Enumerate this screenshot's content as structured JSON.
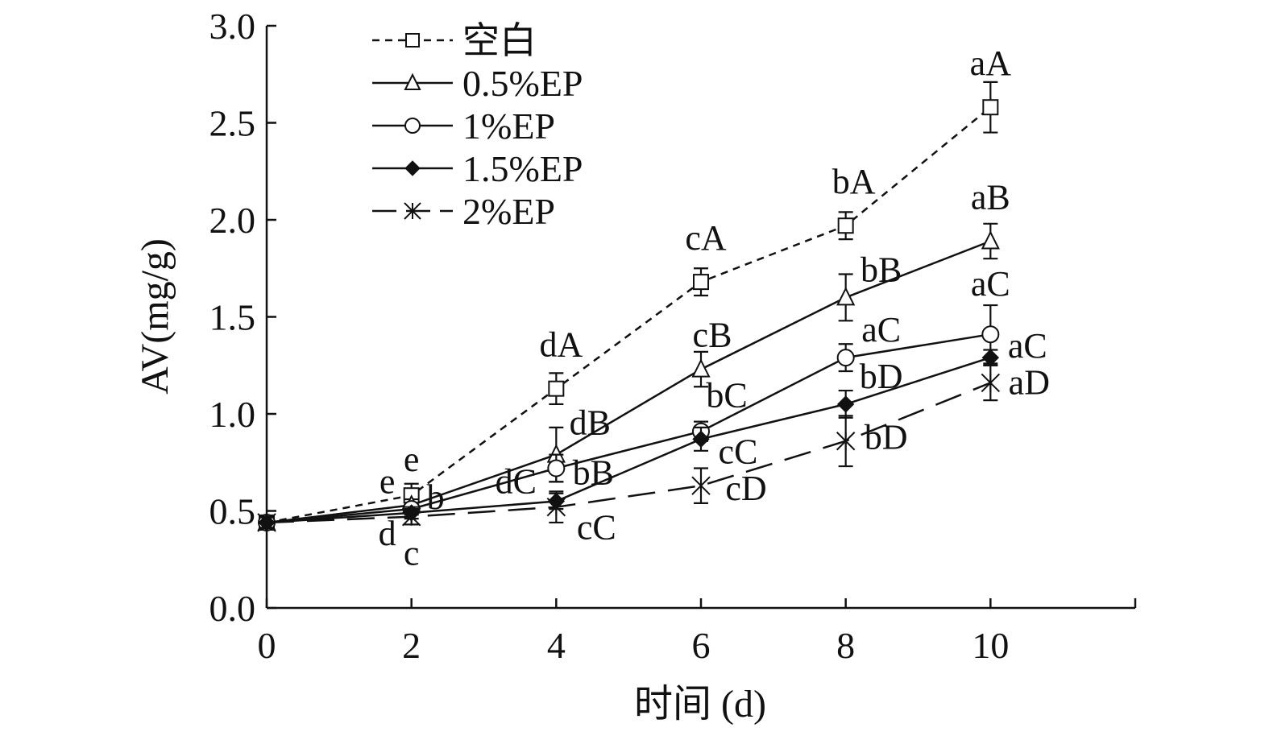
{
  "chart_data": {
    "type": "line",
    "xlabel": "时间 (d)",
    "ylabel": "AV(mg/g)",
    "xlim": [
      0,
      12
    ],
    "ylim": [
      0,
      3
    ],
    "x_ticks": [
      0,
      2,
      4,
      6,
      8,
      10
    ],
    "x_tick_labels": [
      "0",
      "2",
      "4",
      "6",
      "8",
      "10"
    ],
    "y_ticks": [
      0,
      0.5,
      1,
      1.5,
      2,
      2.5,
      3
    ],
    "y_tick_labels": [
      "0.0",
      "0.5",
      "1.0",
      "1.5",
      "2.0",
      "2.5",
      "3.0"
    ],
    "grid": false,
    "legend_position": "top-left",
    "x": [
      0,
      2,
      4,
      6,
      8,
      10
    ],
    "series": [
      {
        "name": "空白",
        "values": [
          0.44,
          0.58,
          1.13,
          1.68,
          1.97,
          2.58
        ],
        "errors": [
          0.03,
          0.06,
          0.08,
          0.07,
          0.07,
          0.13
        ],
        "line": "dashed",
        "marker": "square-open"
      },
      {
        "name": "0.5%EP",
        "values": [
          0.44,
          0.53,
          0.79,
          1.23,
          1.6,
          1.89
        ],
        "errors": [
          0.03,
          0.03,
          0.14,
          0.09,
          0.12,
          0.09
        ],
        "line": "solid",
        "marker": "triangle-open"
      },
      {
        "name": "1%EP",
        "values": [
          0.44,
          0.51,
          0.72,
          0.91,
          1.29,
          1.41
        ],
        "errors": [
          0.03,
          0.03,
          0.07,
          0.05,
          0.07,
          0.15
        ],
        "line": "solid",
        "marker": "circle-open"
      },
      {
        "name": "1.5%EP",
        "values": [
          0.44,
          0.49,
          0.55,
          0.87,
          1.05,
          1.29
        ],
        "errors": [
          0.03,
          0.03,
          0.04,
          0.06,
          0.07,
          0.04
        ],
        "line": "solid",
        "marker": "diamond-filled"
      },
      {
        "name": "2%EP",
        "values": [
          0.44,
          0.47,
          0.52,
          0.63,
          0.86,
          1.16
        ],
        "errors": [
          0.03,
          0.04,
          0.08,
          0.09,
          0.13,
          0.09
        ],
        "line": "long-dash",
        "marker": "asterisk"
      }
    ],
    "annotations": [
      {
        "text": "aA",
        "x": 10,
        "y": 2.58,
        "series": "空白"
      },
      {
        "text": "bA",
        "x": 8,
        "y": 1.97,
        "series": "空白"
      },
      {
        "text": "cA",
        "x": 6,
        "y": 1.68,
        "series": "空白"
      },
      {
        "text": "dA",
        "x": 4,
        "y": 1.13,
        "series": "空白"
      },
      {
        "text": "e",
        "x": 2,
        "y": 0.58,
        "series": "空白"
      },
      {
        "text": "e",
        "x": 2,
        "y": 0.53,
        "series": "0.5%EP"
      },
      {
        "text": "b",
        "x": 2,
        "y": 0.51,
        "series": "1%EP"
      },
      {
        "text": "d",
        "x": 2,
        "y": 0.49,
        "series": "1.5%EP"
      },
      {
        "text": "c",
        "x": 2,
        "y": 0.47,
        "series": "2%EP"
      },
      {
        "text": "aB",
        "x": 10,
        "y": 1.89,
        "series": "0.5%EP"
      },
      {
        "text": "bB",
        "x": 8,
        "y": 1.6,
        "series": "0.5%EP"
      },
      {
        "text": "cB",
        "x": 6,
        "y": 1.23,
        "series": "0.5%EP"
      },
      {
        "text": "dB",
        "x": 4,
        "y": 0.79,
        "series": "0.5%EP"
      },
      {
        "text": "aC",
        "x": 10,
        "y": 1.41,
        "series": "1%EP"
      },
      {
        "text": "aC",
        "x": 8,
        "y": 1.29,
        "series": "1%EP"
      },
      {
        "text": "bC",
        "x": 6,
        "y": 0.91,
        "series": "1%EP"
      },
      {
        "text": "bB",
        "x": 4,
        "y": 0.72,
        "series": "1%EP"
      },
      {
        "text": "aC",
        "x": 10,
        "y": 1.29,
        "series": "1.5%EP"
      },
      {
        "text": "bD",
        "x": 8,
        "y": 1.05,
        "series": "1.5%EP"
      },
      {
        "text": "cC",
        "x": 6,
        "y": 0.87,
        "series": "1.5%EP"
      },
      {
        "text": "dC",
        "x": 4,
        "y": 0.55,
        "series": "1.5%EP"
      },
      {
        "text": "aD",
        "x": 10,
        "y": 1.16,
        "series": "2%EP"
      },
      {
        "text": "bD",
        "x": 8,
        "y": 0.86,
        "series": "2%EP"
      },
      {
        "text": "cD",
        "x": 6,
        "y": 0.63,
        "series": "2%EP"
      },
      {
        "text": "cC",
        "x": 4,
        "y": 0.52,
        "series": "2%EP"
      }
    ]
  }
}
